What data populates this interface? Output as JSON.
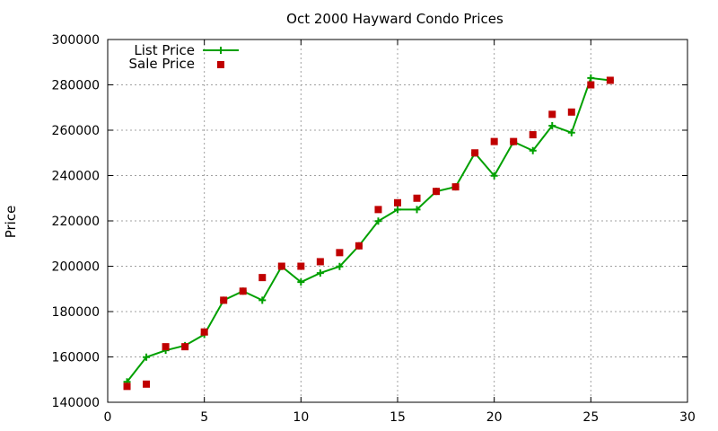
{
  "chart_data": {
    "type": "line",
    "title": "Oct 2000 Hayward Condo Prices",
    "xlabel": "",
    "ylabel": "Price",
    "xlim": [
      0,
      30
    ],
    "ylim": [
      140000,
      300000
    ],
    "xticks": [
      "0",
      "5",
      "10",
      "15",
      "20",
      "25",
      "30"
    ],
    "yticks": [
      "140000",
      "160000",
      "180000",
      "200000",
      "220000",
      "240000",
      "260000",
      "280000",
      "300000"
    ],
    "grid": true,
    "legend_position": "top-left",
    "series": [
      {
        "name": "List Price",
        "style": "line-with-plus-markers",
        "color": "#00a000",
        "x": [
          1,
          2,
          3,
          4,
          5,
          6,
          7,
          8,
          9,
          10,
          11,
          12,
          13,
          14,
          15,
          16,
          17,
          18,
          19,
          20,
          21,
          22,
          23,
          24,
          25,
          26
        ],
        "y": [
          149000,
          159900,
          162900,
          165000,
          169900,
          185000,
          189000,
          185000,
          199900,
          193000,
          197000,
          199900,
          209000,
          219900,
          225000,
          225000,
          233000,
          235000,
          249900,
          239900,
          254900,
          251000,
          262000,
          258900,
          283000,
          282000
        ]
      },
      {
        "name": "Sale Price",
        "style": "square-markers",
        "color": "#c00000",
        "x": [
          1,
          2,
          3,
          4,
          5,
          6,
          7,
          8,
          9,
          10,
          11,
          12,
          13,
          14,
          15,
          16,
          17,
          18,
          19,
          20,
          21,
          22,
          23,
          24,
          25,
          26
        ],
        "y": [
          147000,
          148000,
          164500,
          164500,
          171000,
          185000,
          189000,
          195000,
          200000,
          200000,
          202000,
          206000,
          209000,
          225000,
          228000,
          230000,
          233000,
          235000,
          250000,
          255000,
          255000,
          258000,
          267000,
          268000,
          280000,
          282000
        ]
      }
    ]
  }
}
